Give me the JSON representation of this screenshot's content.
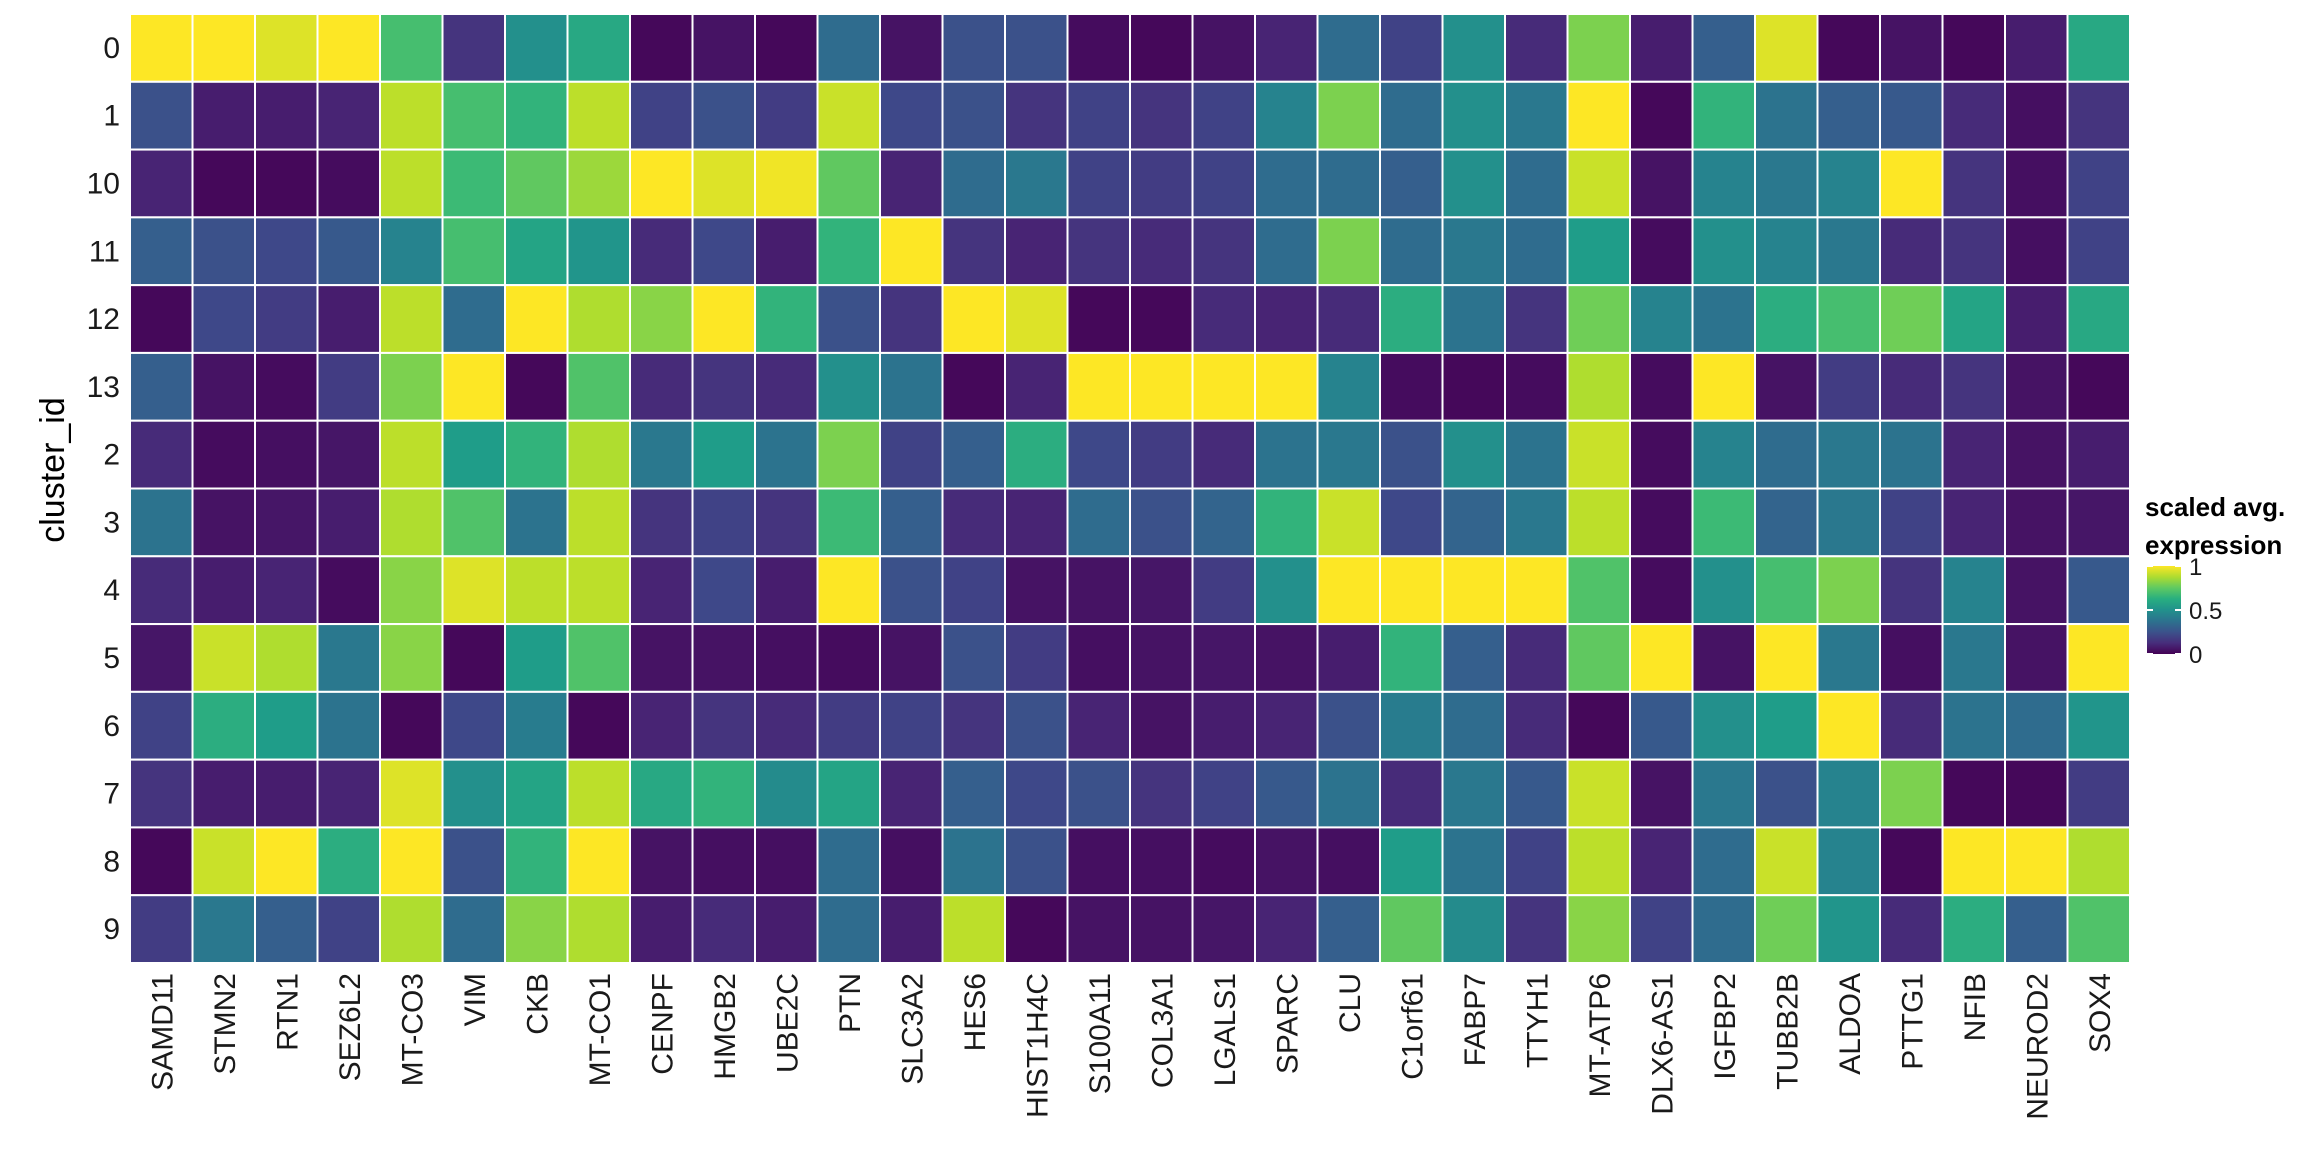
{
  "chart_data": {
    "type": "heatmap",
    "ylabel": "cluster_id",
    "xlabel": "",
    "rows": [
      "0",
      "1",
      "10",
      "11",
      "12",
      "13",
      "2",
      "3",
      "4",
      "5",
      "6",
      "7",
      "8",
      "9"
    ],
    "columns": [
      "SAMD11",
      "STMN2",
      "RTN1",
      "SEZ6L2",
      "MT-CO3",
      "VIM",
      "CKB",
      "MT-CO1",
      "CENPF",
      "HMGB2",
      "UBE2C",
      "PTN",
      "SLC3A2",
      "HES6",
      "HIST1H4C",
      "S100A11",
      "COL3A1",
      "LGALS1",
      "SPARC",
      "CLU",
      "C1orf61",
      "FABP7",
      "TTYH1",
      "MT-ATP6",
      "DLX6-AS1",
      "IGFBP2",
      "TUBB2B",
      "ALDOA",
      "PTTG1",
      "NFIB",
      "NEUROD2",
      "SOX4"
    ],
    "values": [
      [
        1.0,
        1.0,
        0.95,
        1.0,
        0.7,
        0.15,
        0.5,
        0.6,
        0.02,
        0.05,
        0.02,
        0.35,
        0.05,
        0.25,
        0.25,
        0.03,
        0.02,
        0.05,
        0.1,
        0.35,
        0.2,
        0.5,
        0.12,
        0.8,
        0.08,
        0.3,
        0.95,
        0.02,
        0.05,
        0.02,
        0.08,
        0.6
      ],
      [
        0.25,
        0.08,
        0.08,
        0.1,
        0.9,
        0.7,
        0.65,
        0.9,
        0.2,
        0.25,
        0.18,
        0.92,
        0.22,
        0.25,
        0.15,
        0.2,
        0.15,
        0.2,
        0.45,
        0.8,
        0.35,
        0.5,
        0.4,
        1.0,
        0.02,
        0.65,
        0.38,
        0.3,
        0.28,
        0.12,
        0.04,
        0.15
      ],
      [
        0.1,
        0.02,
        0.02,
        0.03,
        0.9,
        0.68,
        0.75,
        0.85,
        1.0,
        0.95,
        0.98,
        0.75,
        0.1,
        0.35,
        0.4,
        0.2,
        0.18,
        0.2,
        0.35,
        0.35,
        0.3,
        0.5,
        0.35,
        0.92,
        0.05,
        0.45,
        0.4,
        0.45,
        1.0,
        0.15,
        0.04,
        0.2
      ],
      [
        0.3,
        0.25,
        0.22,
        0.28,
        0.45,
        0.7,
        0.58,
        0.52,
        0.12,
        0.22,
        0.08,
        0.65,
        1.0,
        0.15,
        0.1,
        0.15,
        0.12,
        0.15,
        0.35,
        0.8,
        0.35,
        0.4,
        0.35,
        0.55,
        0.03,
        0.5,
        0.45,
        0.4,
        0.12,
        0.15,
        0.04,
        0.2
      ],
      [
        0.02,
        0.22,
        0.18,
        0.08,
        0.9,
        0.35,
        1.0,
        0.88,
        0.82,
        1.0,
        0.65,
        0.25,
        0.15,
        1.0,
        0.95,
        0.02,
        0.02,
        0.12,
        0.1,
        0.12,
        0.62,
        0.38,
        0.15,
        0.78,
        0.45,
        0.38,
        0.62,
        0.7,
        0.78,
        0.58,
        0.08,
        0.6
      ],
      [
        0.3,
        0.05,
        0.03,
        0.18,
        0.8,
        1.0,
        0.02,
        0.72,
        0.12,
        0.15,
        0.12,
        0.5,
        0.38,
        0.02,
        0.1,
        1.0,
        1.0,
        1.0,
        1.0,
        0.45,
        0.03,
        0.02,
        0.03,
        0.88,
        0.03,
        1.0,
        0.05,
        0.18,
        0.12,
        0.15,
        0.05,
        0.02
      ],
      [
        0.12,
        0.03,
        0.04,
        0.06,
        0.9,
        0.55,
        0.65,
        0.88,
        0.4,
        0.55,
        0.38,
        0.8,
        0.2,
        0.3,
        0.62,
        0.22,
        0.18,
        0.12,
        0.38,
        0.4,
        0.25,
        0.5,
        0.38,
        0.92,
        0.03,
        0.45,
        0.35,
        0.4,
        0.38,
        0.1,
        0.05,
        0.08
      ],
      [
        0.38,
        0.05,
        0.06,
        0.08,
        0.88,
        0.72,
        0.38,
        0.9,
        0.15,
        0.2,
        0.15,
        0.68,
        0.3,
        0.12,
        0.1,
        0.35,
        0.25,
        0.32,
        0.65,
        0.92,
        0.22,
        0.32,
        0.4,
        0.9,
        0.03,
        0.68,
        0.32,
        0.4,
        0.2,
        0.1,
        0.05,
        0.06
      ],
      [
        0.12,
        0.08,
        0.1,
        0.03,
        0.82,
        0.95,
        0.9,
        0.9,
        0.1,
        0.22,
        0.08,
        1.0,
        0.25,
        0.2,
        0.05,
        0.05,
        0.06,
        0.18,
        0.5,
        1.0,
        1.0,
        1.0,
        1.0,
        0.72,
        0.03,
        0.5,
        0.7,
        0.8,
        0.15,
        0.45,
        0.05,
        0.28
      ],
      [
        0.06,
        0.92,
        0.88,
        0.4,
        0.82,
        0.02,
        0.55,
        0.72,
        0.05,
        0.05,
        0.04,
        0.03,
        0.05,
        0.25,
        0.18,
        0.04,
        0.05,
        0.06,
        0.05,
        0.08,
        0.65,
        0.3,
        0.12,
        0.75,
        1.0,
        0.05,
        1.0,
        0.4,
        0.04,
        0.4,
        0.05,
        1.0
      ],
      [
        0.2,
        0.62,
        0.55,
        0.38,
        0.02,
        0.22,
        0.42,
        0.02,
        0.1,
        0.15,
        0.12,
        0.18,
        0.2,
        0.15,
        0.25,
        0.1,
        0.05,
        0.08,
        0.1,
        0.25,
        0.42,
        0.35,
        0.12,
        0.02,
        0.28,
        0.5,
        0.55,
        1.0,
        0.12,
        0.38,
        0.35,
        0.52
      ],
      [
        0.15,
        0.08,
        0.08,
        0.1,
        0.95,
        0.5,
        0.58,
        0.9,
        0.6,
        0.65,
        0.48,
        0.58,
        0.1,
        0.3,
        0.22,
        0.25,
        0.15,
        0.2,
        0.28,
        0.38,
        0.12,
        0.4,
        0.28,
        0.92,
        0.05,
        0.4,
        0.25,
        0.45,
        0.8,
        0.02,
        0.02,
        0.18
      ],
      [
        0.02,
        0.92,
        1.0,
        0.62,
        1.0,
        0.25,
        0.65,
        1.0,
        0.05,
        0.04,
        0.04,
        0.35,
        0.04,
        0.38,
        0.25,
        0.04,
        0.04,
        0.03,
        0.05,
        0.04,
        0.55,
        0.38,
        0.2,
        0.9,
        0.1,
        0.35,
        0.92,
        0.45,
        0.02,
        1.0,
        1.0,
        0.88
      ],
      [
        0.18,
        0.4,
        0.3,
        0.2,
        0.88,
        0.35,
        0.82,
        0.88,
        0.08,
        0.12,
        0.08,
        0.35,
        0.08,
        0.9,
        0.02,
        0.05,
        0.05,
        0.06,
        0.1,
        0.3,
        0.75,
        0.48,
        0.15,
        0.82,
        0.2,
        0.35,
        0.78,
        0.52,
        0.12,
        0.62,
        0.3,
        0.72
      ]
    ],
    "legend": {
      "title_line1": "scaled avg.",
      "title_line2": "expression",
      "ticks": [
        "1",
        "0.5",
        "0"
      ],
      "range": [
        0,
        1
      ],
      "colormap": "viridis"
    },
    "grid": false
  },
  "colors": {
    "cell_border": "#ffffff",
    "text": "#1a1a1a",
    "viridis_low": "#440154",
    "viridis_mid": "#21918c",
    "viridis_high": "#fde725"
  }
}
